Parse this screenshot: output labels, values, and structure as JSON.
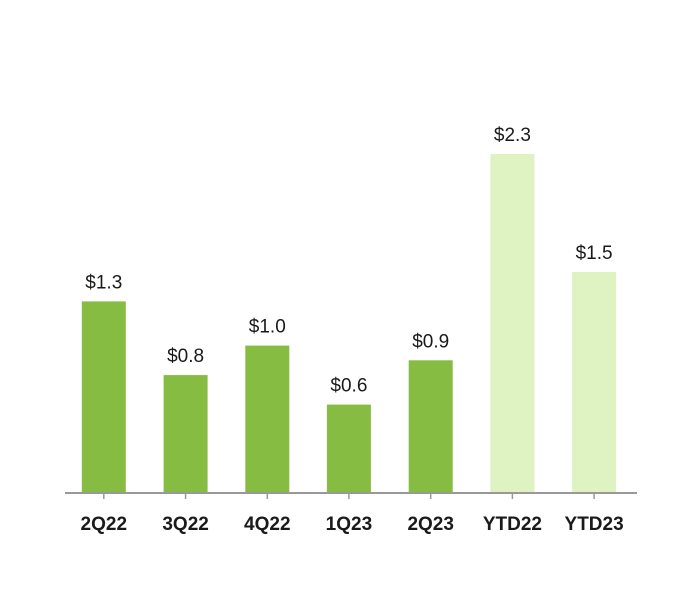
{
  "chart_data": {
    "type": "bar",
    "title": "",
    "xlabel": "",
    "ylabel": "",
    "ylim": [
      0,
      2.3
    ],
    "grid": false,
    "legend": "none",
    "categories": [
      "2Q22",
      "3Q22",
      "4Q22",
      "1Q23",
      "2Q23",
      "YTD22",
      "YTD23"
    ],
    "values": [
      1.3,
      0.8,
      1.0,
      0.6,
      0.9,
      2.3,
      1.5
    ],
    "value_labels": [
      "$1.3",
      "$0.8",
      "$1.0",
      "$0.6",
      "$0.9",
      "$2.3",
      "$1.5"
    ],
    "bar_colors": [
      "#86bc42",
      "#86bc42",
      "#86bc42",
      "#86bc42",
      "#86bc42",
      "#dff2c2",
      "#dff2c2"
    ],
    "axis_color": "#999999"
  }
}
